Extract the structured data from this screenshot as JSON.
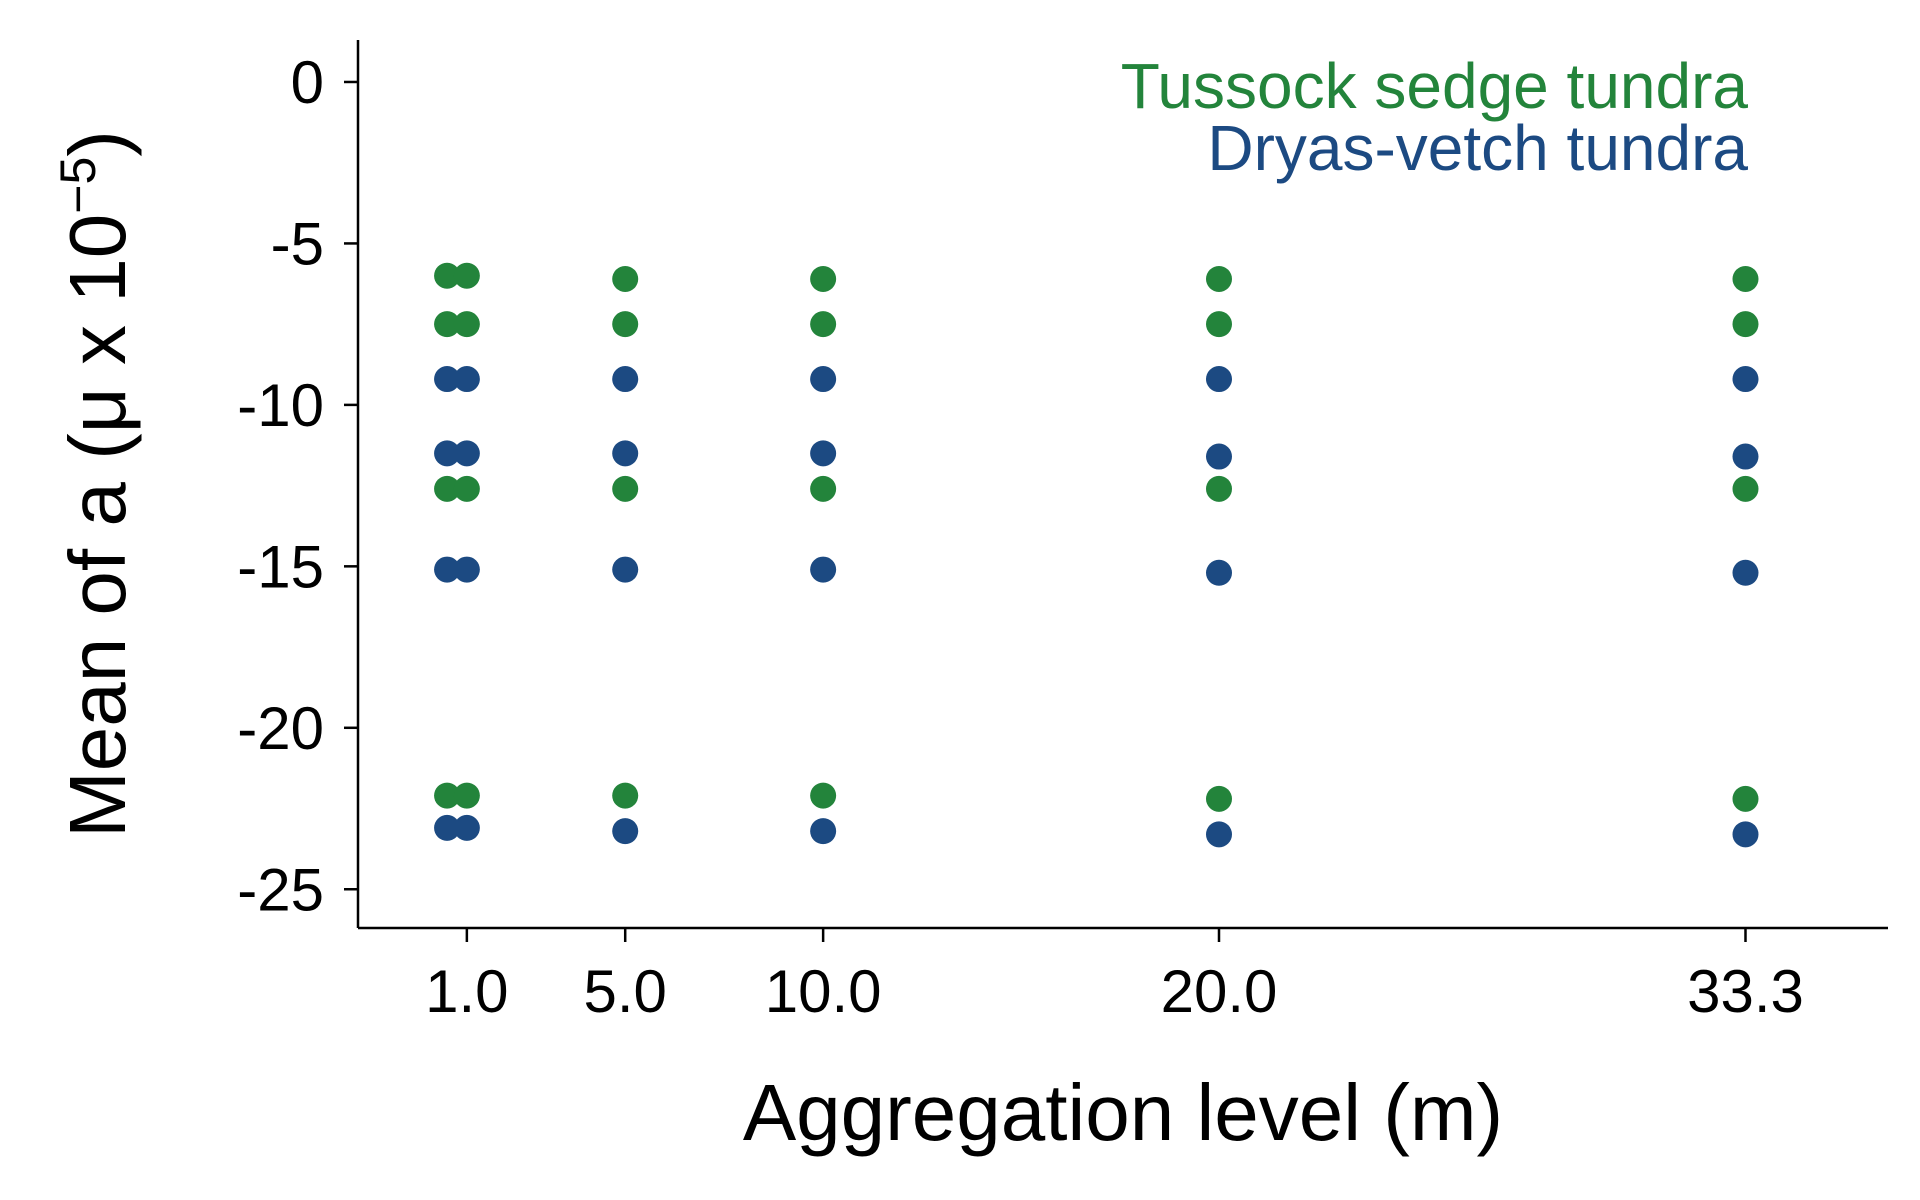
{
  "chart_data": {
    "type": "scatter",
    "xlabel": "Aggregation level (m)",
    "ylabel_prefix": "Mean of a (",
    "ylabel_mu": "μ",
    "ylabel_mid": " x 10",
    "ylabel_exp": "−5",
    "ylabel_suffix": ")",
    "x_ticks": [
      1.0,
      5.0,
      10.0,
      20.0,
      33.3
    ],
    "x_tick_labels": [
      "1.0",
      "5.0",
      "10.0",
      "20.0",
      "33.3"
    ],
    "xlim": [
      -1.75,
      36.9
    ],
    "y_ticks": [
      0,
      -5,
      -10,
      -15,
      -20,
      -25
    ],
    "y_tick_labels": [
      "0",
      "-5",
      "-10",
      "-15",
      "-20",
      "-25"
    ],
    "ylim": [
      -26.2,
      1.3
    ],
    "grid": false,
    "legend_position": "top-right",
    "series": [
      {
        "name": "Tussock sedge tundra",
        "color": "#23843b",
        "points": [
          {
            "x": 0.5,
            "y": -6.0
          },
          {
            "x": 1.0,
            "y": -6.0
          },
          {
            "x": 0.5,
            "y": -7.5
          },
          {
            "x": 1.0,
            "y": -7.5
          },
          {
            "x": 0.5,
            "y": -12.6
          },
          {
            "x": 1.0,
            "y": -12.6
          },
          {
            "x": 0.5,
            "y": -22.1
          },
          {
            "x": 1.0,
            "y": -22.1
          },
          {
            "x": 5.0,
            "y": -6.1
          },
          {
            "x": 5.0,
            "y": -7.5
          },
          {
            "x": 5.0,
            "y": -12.6
          },
          {
            "x": 5.0,
            "y": -22.1
          },
          {
            "x": 10.0,
            "y": -6.1
          },
          {
            "x": 10.0,
            "y": -7.5
          },
          {
            "x": 10.0,
            "y": -12.6
          },
          {
            "x": 10.0,
            "y": -22.1
          },
          {
            "x": 20.0,
            "y": -6.1
          },
          {
            "x": 20.0,
            "y": -7.5
          },
          {
            "x": 20.0,
            "y": -12.6
          },
          {
            "x": 20.0,
            "y": -22.2
          },
          {
            "x": 33.3,
            "y": -6.1
          },
          {
            "x": 33.3,
            "y": -7.5
          },
          {
            "x": 33.3,
            "y": -12.6
          },
          {
            "x": 33.3,
            "y": -22.2
          }
        ]
      },
      {
        "name": "Dryas-vetch tundra",
        "color": "#1c4a82",
        "points": [
          {
            "x": 0.5,
            "y": -9.2
          },
          {
            "x": 1.0,
            "y": -9.2
          },
          {
            "x": 0.5,
            "y": -11.5
          },
          {
            "x": 1.0,
            "y": -11.5
          },
          {
            "x": 0.5,
            "y": -15.1
          },
          {
            "x": 1.0,
            "y": -15.1
          },
          {
            "x": 0.5,
            "y": -23.1
          },
          {
            "x": 1.0,
            "y": -23.1
          },
          {
            "x": 5.0,
            "y": -9.2
          },
          {
            "x": 5.0,
            "y": -11.5
          },
          {
            "x": 5.0,
            "y": -15.1
          },
          {
            "x": 5.0,
            "y": -23.2
          },
          {
            "x": 10.0,
            "y": -9.2
          },
          {
            "x": 10.0,
            "y": -11.5
          },
          {
            "x": 10.0,
            "y": -15.1
          },
          {
            "x": 10.0,
            "y": -23.2
          },
          {
            "x": 20.0,
            "y": -9.2
          },
          {
            "x": 20.0,
            "y": -11.6
          },
          {
            "x": 20.0,
            "y": -15.2
          },
          {
            "x": 20.0,
            "y": -23.3
          },
          {
            "x": 33.3,
            "y": -9.2
          },
          {
            "x": 33.3,
            "y": -11.6
          },
          {
            "x": 33.3,
            "y": -15.2
          },
          {
            "x": 33.3,
            "y": -23.3
          }
        ]
      }
    ]
  }
}
